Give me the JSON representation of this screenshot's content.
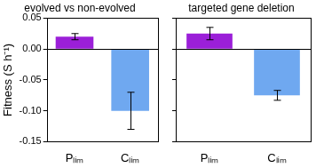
{
  "chart_data": [
    {
      "type": "bar",
      "title": "evolved vs non-evolved",
      "ylabel": "Fitness (S h⁻¹)",
      "categories": [
        "Pₗᵢₘ",
        "Cₗᵢₘ"
      ],
      "values": [
        0.02,
        -0.1
      ],
      "errors": [
        0.005,
        0.03
      ],
      "colors": [
        "#9b1fd8",
        "#6fa8f0"
      ],
      "ylim": [
        -0.15,
        0.05
      ],
      "yticks": [
        -0.15,
        {
          "value": -0.1,
          "label": "-0.10"
        },
        -0.05,
        {
          "value": 0,
          "label": "0.00"
        },
        0.05
      ],
      "grid": false
    },
    {
      "type": "bar",
      "title": "targeted gene deletion",
      "categories": [
        "Pₗᵢₘ",
        "Cₗᵢₘ"
      ],
      "values": [
        0.025,
        -0.075
      ],
      "errors": [
        0.01,
        0.008
      ],
      "colors": [
        "#9b1fd8",
        "#6fa8f0"
      ],
      "ylim": [
        -0.15,
        0.05
      ],
      "yticks": [
        -0.15,
        {
          "value": -0.1,
          "label": "-0.10"
        },
        -0.05,
        {
          "value": 0,
          "label": "0.00"
        },
        0.05
      ],
      "grid": false,
      "tick_labels": "x"
    }
  ]
}
